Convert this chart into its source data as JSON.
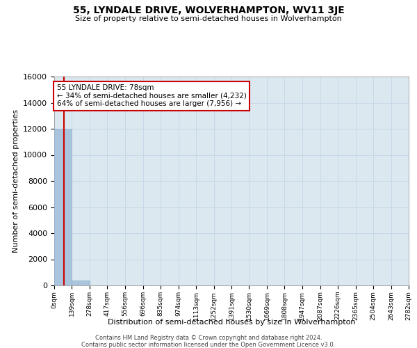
{
  "title": "55, LYNDALE DRIVE, WOLVERHAMPTON, WV11 3JE",
  "subtitle": "Size of property relative to semi-detached houses in Wolverhampton",
  "xlabel": "Distribution of semi-detached houses by size in Wolverhampton",
  "ylabel": "Number of semi-detached properties",
  "property_size": 78,
  "property_label": "55 LYNDALE DRIVE: 78sqm",
  "smaller_pct": 34,
  "smaller_count": 4232,
  "larger_pct": 64,
  "larger_count": 7956,
  "bin_edges": [
    0,
    139,
    278,
    417,
    556,
    696,
    835,
    974,
    1113,
    1252,
    1391,
    1530,
    1669,
    1808,
    1947,
    2087,
    2226,
    2365,
    2504,
    2643,
    2782
  ],
  "bin_counts": [
    12000,
    380,
    0,
    0,
    0,
    0,
    0,
    0,
    0,
    0,
    0,
    0,
    0,
    0,
    0,
    0,
    0,
    0,
    0,
    0
  ],
  "bar_color": "#aac4dd",
  "bar_edge_color": "#8ab0cc",
  "vline_color": "#cc0000",
  "annotation_edge_color": "#cc0000",
  "annotation_bg_color": "#ffffff",
  "grid_color": "#c8d8e8",
  "bg_color": "#dce8f0",
  "ylim": [
    0,
    16000
  ],
  "yticks": [
    0,
    2000,
    4000,
    6000,
    8000,
    10000,
    12000,
    14000,
    16000
  ],
  "footer_line1": "Contains HM Land Registry data © Crown copyright and database right 2024.",
  "footer_line2": "Contains public sector information licensed under the Open Government Licence v3.0."
}
